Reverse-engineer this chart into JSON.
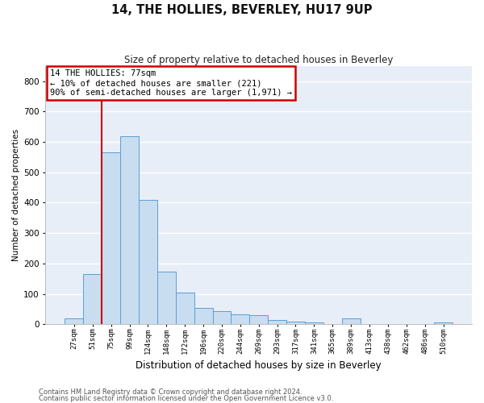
{
  "title": "14, THE HOLLIES, BEVERLEY, HU17 9UP",
  "subtitle": "Size of property relative to detached houses in Beverley",
  "xlabel": "Distribution of detached houses by size in Beverley",
  "ylabel": "Number of detached properties",
  "bar_color": "#c8ddf0",
  "bar_edge_color": "#5a9fd4",
  "background_color": "#e8eef8",
  "grid_color": "#ffffff",
  "categories": [
    "27sqm",
    "51sqm",
    "75sqm",
    "99sqm",
    "124sqm",
    "148sqm",
    "172sqm",
    "196sqm",
    "220sqm",
    "244sqm",
    "269sqm",
    "293sqm",
    "317sqm",
    "341sqm",
    "365sqm",
    "389sqm",
    "413sqm",
    "438sqm",
    "462sqm",
    "486sqm",
    "510sqm"
  ],
  "values": [
    18,
    165,
    565,
    618,
    410,
    172,
    104,
    55,
    43,
    33,
    30,
    13,
    8,
    5,
    0,
    18,
    0,
    0,
    0,
    0,
    5
  ],
  "property_line_color": "#cc0000",
  "annotation_line1": "14 THE HOLLIES: 77sqm",
  "annotation_line2": "← 10% of detached houses are smaller (221)",
  "annotation_line3": "90% of semi-detached houses are larger (1,971) →",
  "annotation_box_color": "#ffffff",
  "annotation_box_edge": "#cc0000",
  "footnote1": "Contains HM Land Registry data © Crown copyright and database right 2024.",
  "footnote2": "Contains public sector information licensed under the Open Government Licence v3.0.",
  "ylim_max": 850,
  "yticks": [
    0,
    100,
    200,
    300,
    400,
    500,
    600,
    700,
    800
  ],
  "fig_bg": "#ffffff"
}
